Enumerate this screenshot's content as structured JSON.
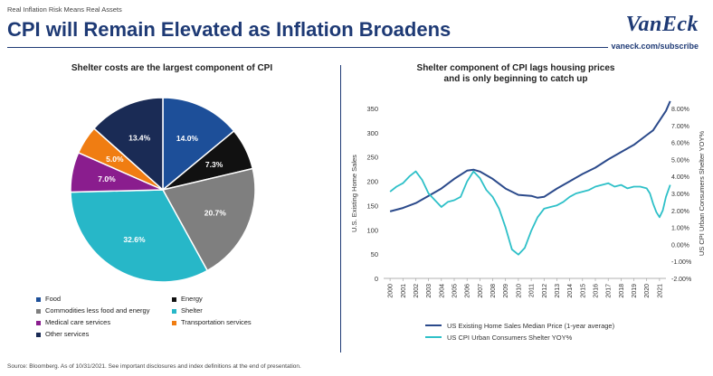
{
  "header": {
    "kicker": "Real Inflation Risk Means Real Assets",
    "title": "CPI will Remain Elevated as Inflation Broadens",
    "logo": "VanEck",
    "url": "vaneck.com/subscribe",
    "brand_color": "#1e3a75"
  },
  "footer": {
    "source": "Source: Bloomberg. As of 10/31/2021. See important disclosures and index definitions at the end of presentation."
  },
  "chart_data": [
    {
      "type": "pie",
      "title": "Shelter costs are the largest component of CPI",
      "start_angle_deg": 0,
      "slices": [
        {
          "label": "Food",
          "value": 14.0,
          "display": "14.0%",
          "color": "#1d4f99"
        },
        {
          "label": "Energy",
          "value": 7.3,
          "display": "7.3%",
          "color": "#111111"
        },
        {
          "label": "Commodities less food and energy",
          "value": 20.7,
          "display": "20.7%",
          "color": "#7f7f7f"
        },
        {
          "label": "Shelter",
          "value": 32.6,
          "display": "32.6%",
          "color": "#27b7c8"
        },
        {
          "label": "Medical care services",
          "value": 7.0,
          "display": "7.0%",
          "color": "#8a1d8e"
        },
        {
          "label": "Transportation services",
          "value": 5.0,
          "display": "5.0%",
          "color": "#f07d12"
        },
        {
          "label": "Other services",
          "value": 13.4,
          "display": "13.4%",
          "color": "#1a2b55"
        }
      ],
      "legend_order": [
        "Food",
        "Energy",
        "Commodities less food and energy",
        "Shelter",
        "Medical care services",
        "Transportation services",
        "Other services"
      ]
    },
    {
      "type": "line",
      "title_lines": [
        "Shelter component of CPI lags housing prices",
        "and is only beginning to catch up"
      ],
      "x_ticks": [
        "2000",
        "2001",
        "2002",
        "2003",
        "2004",
        "2005",
        "2006",
        "2007",
        "2008",
        "2009",
        "2010",
        "2011",
        "2012",
        "2013",
        "2014",
        "2015",
        "2016",
        "2017",
        "2018",
        "2019",
        "2020",
        "2021"
      ],
      "y_left": {
        "label": "U.S. Existing Home Sales",
        "min": 0,
        "max": 350,
        "ticks": [
          0,
          50,
          100,
          150,
          200,
          250,
          300,
          350
        ]
      },
      "y_right": {
        "label": "US CPI Urban Consumers Shelter YOY%",
        "min": -2,
        "max": 8,
        "ticks": [
          "-2.00%",
          "-1.00%",
          "0.00%",
          "1.00%",
          "2.00%",
          "3.00%",
          "4.00%",
          "5.00%",
          "6.00%",
          "7.00%",
          "8.00%"
        ]
      },
      "series": [
        {
          "name": "US Existing Home Sales Median Price (1-year average)",
          "axis": "left",
          "color": "#2b4a8b",
          "x": [
            2000,
            2001,
            2002,
            2003,
            2004,
            2005,
            2006,
            2006.5,
            2007,
            2008,
            2009,
            2010,
            2011,
            2011.5,
            2012,
            2013,
            2014,
            2015,
            2016,
            2017,
            2018,
            2019,
            2020,
            2020.5,
            2021,
            2021.5,
            2021.83
          ],
          "y": [
            138,
            145,
            155,
            170,
            185,
            205,
            222,
            224,
            220,
            205,
            185,
            172,
            170,
            166,
            168,
            185,
            200,
            215,
            228,
            245,
            260,
            275,
            295,
            305,
            325,
            345,
            365
          ]
        },
        {
          "name": "US CPI Urban Consumers Shelter YOY%",
          "axis": "right",
          "color": "#2ec0c8",
          "x": [
            2000,
            2000.5,
            2001,
            2001.5,
            2002,
            2002.5,
            2003,
            2003.5,
            2004,
            2004.5,
            2005,
            2005.5,
            2006,
            2006.5,
            2007,
            2007.5,
            2008,
            2008.5,
            2009,
            2009.5,
            2010,
            2010.5,
            2011,
            2011.5,
            2012,
            2012.5,
            2013,
            2013.5,
            2014,
            2014.5,
            2015,
            2015.5,
            2016,
            2016.5,
            2017,
            2017.5,
            2018,
            2018.5,
            2019,
            2019.5,
            2020,
            2020.25,
            2020.5,
            2020.75,
            2021,
            2021.25,
            2021.5,
            2021.83
          ],
          "y": [
            3.1,
            3.4,
            3.6,
            4.0,
            4.3,
            3.8,
            3.0,
            2.6,
            2.2,
            2.5,
            2.6,
            2.8,
            3.7,
            4.3,
            3.9,
            3.2,
            2.8,
            2.1,
            1.0,
            -0.3,
            -0.6,
            -0.2,
            0.8,
            1.6,
            2.1,
            2.2,
            2.3,
            2.5,
            2.8,
            3.0,
            3.1,
            3.2,
            3.4,
            3.5,
            3.6,
            3.4,
            3.5,
            3.3,
            3.4,
            3.4,
            3.3,
            3.0,
            2.4,
            1.9,
            1.6,
            2.0,
            2.8,
            3.5
          ]
        }
      ],
      "legend": [
        "US Existing Home Sales Median Price (1-year average)",
        "US CPI Urban Consumers Shelter YOY%"
      ]
    }
  ]
}
